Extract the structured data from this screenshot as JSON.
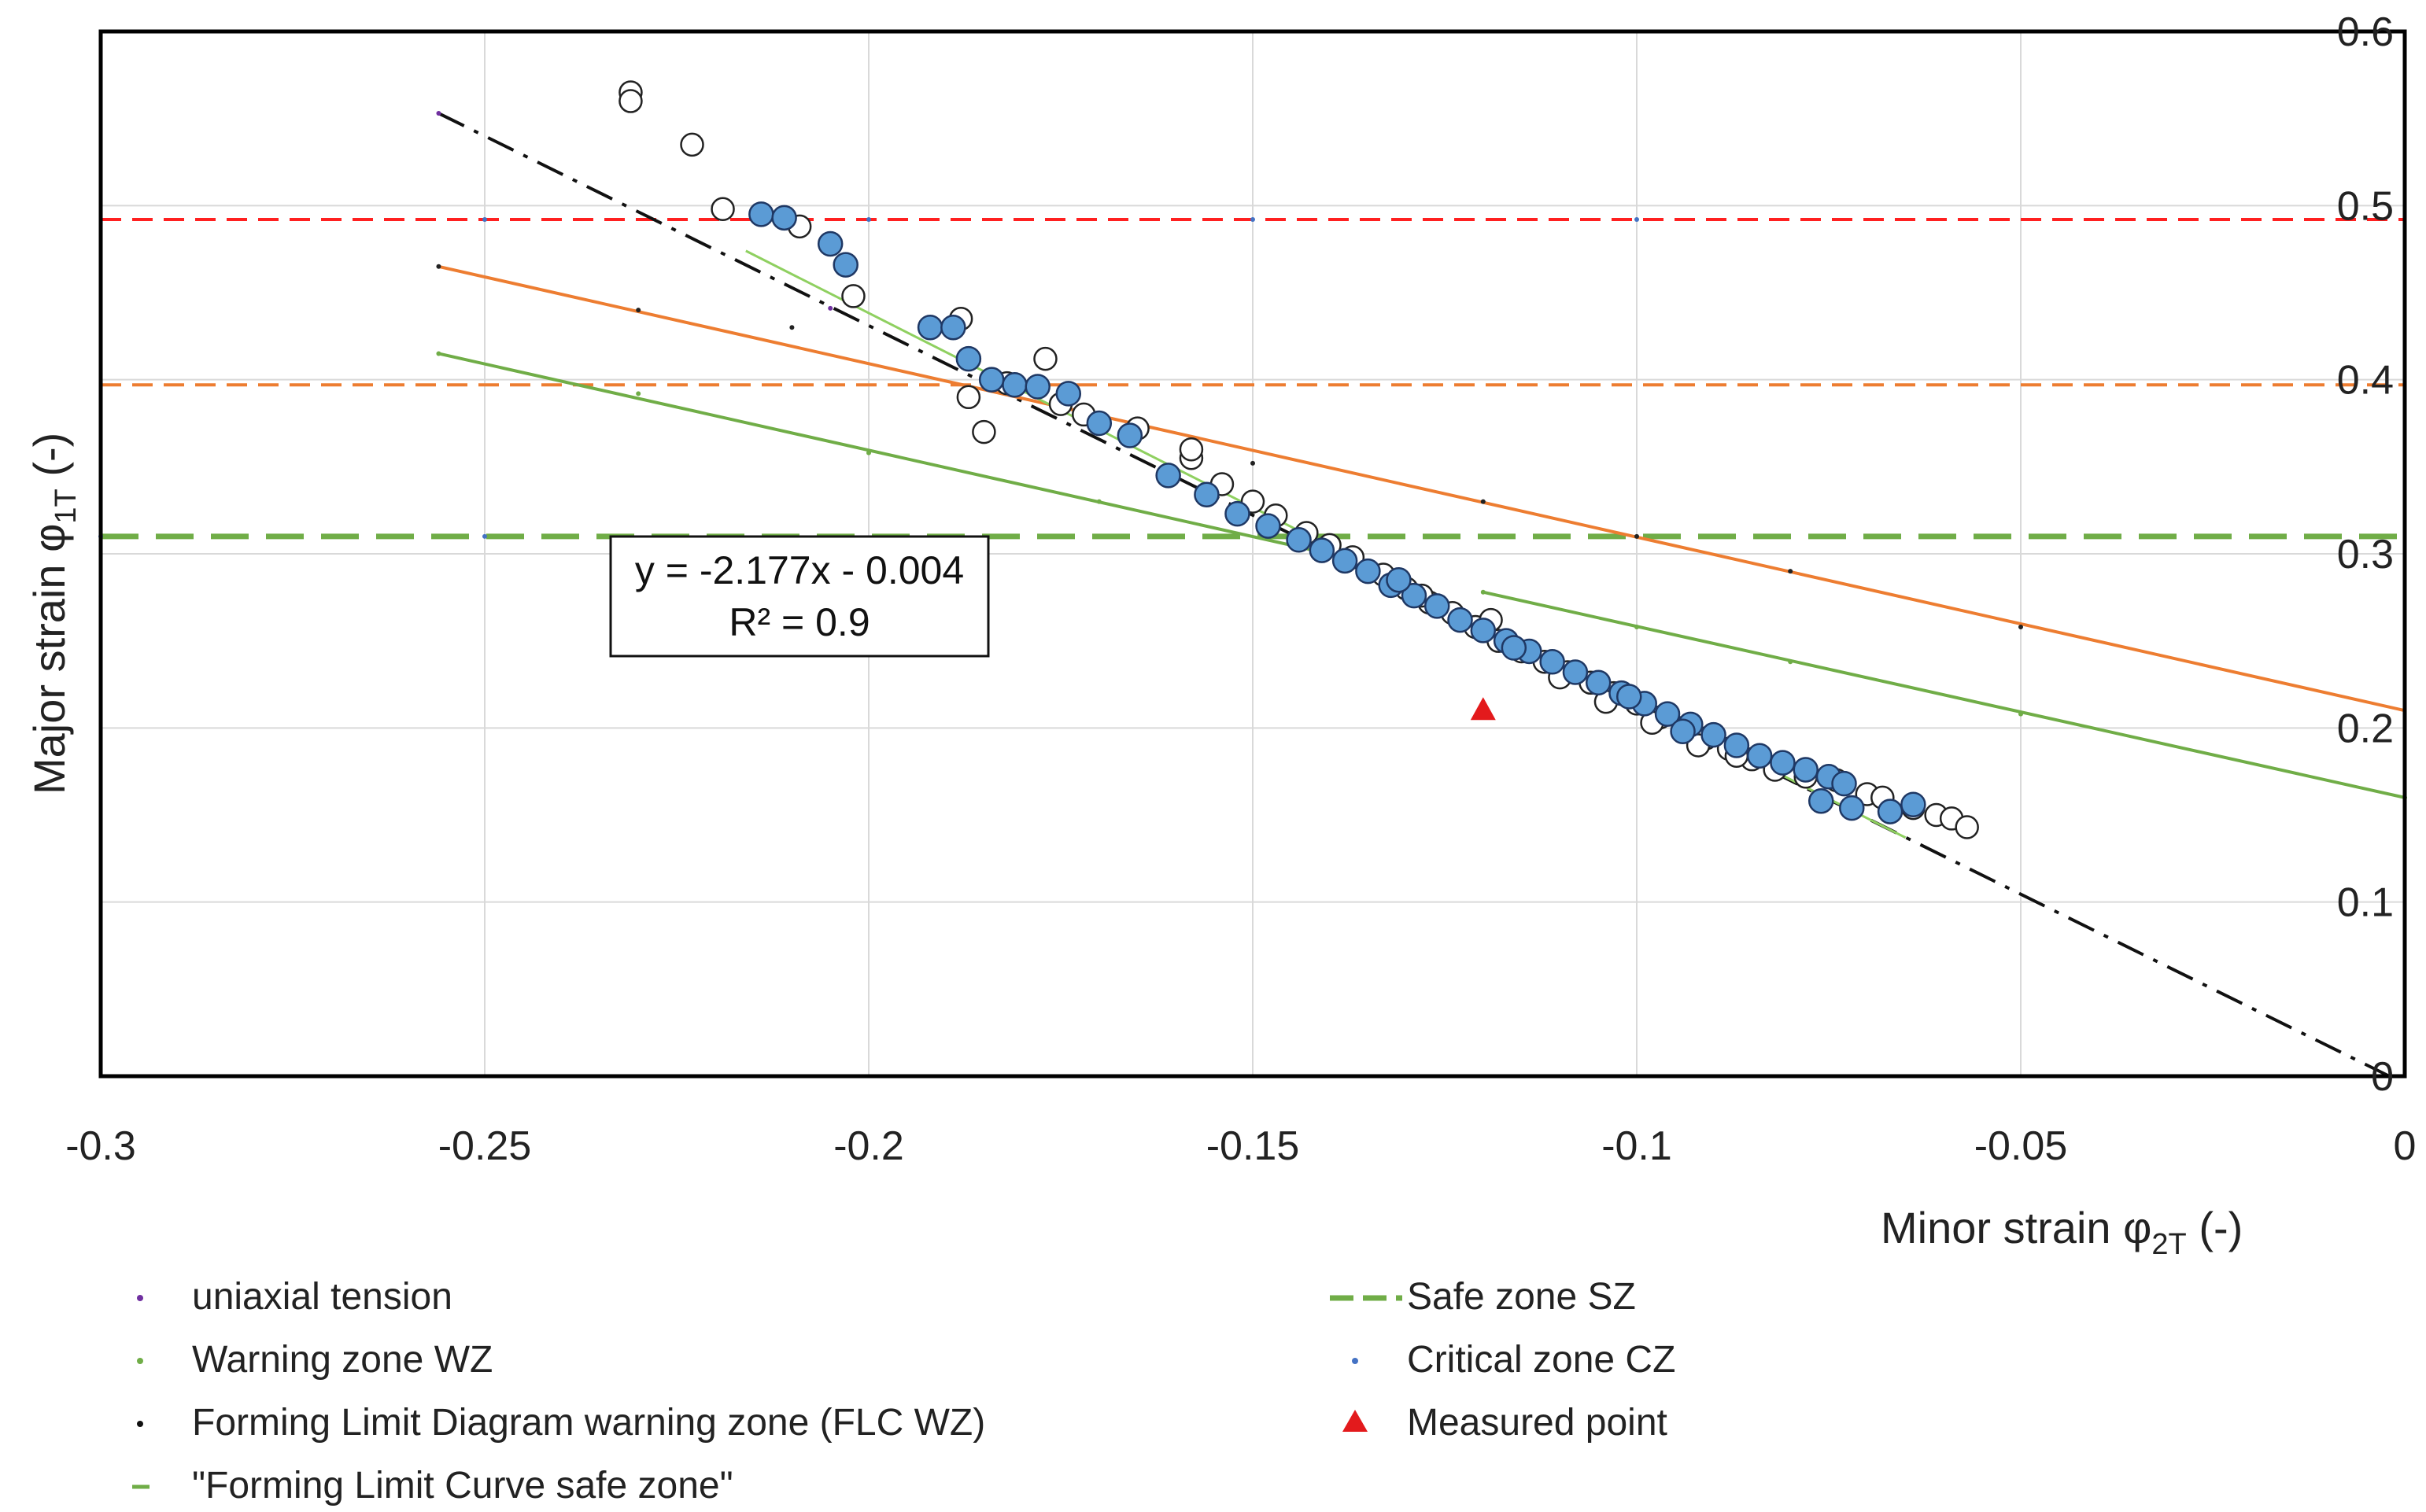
{
  "chart_data": {
    "type": "scatter",
    "xlabel_prefix": "Minor strain φ",
    "xlabel_sub": "2T",
    "xlabel_suffix": " (-)",
    "ylabel_prefix": "Major strain φ",
    "ylabel_sub": "1T",
    "ylabel_suffix": " (-)",
    "xlim": [
      -0.3,
      0
    ],
    "ylim": [
      0,
      0.6
    ],
    "x_ticks": [
      -0.3,
      -0.25,
      -0.2,
      -0.15,
      -0.1,
      -0.05,
      0
    ],
    "x_tick_labels": [
      "-0.3",
      "-0.25",
      "-0.2",
      "-0.15",
      "-0.1",
      "-0.05",
      "0"
    ],
    "y_ticks": [
      0,
      0.1,
      0.2,
      0.3,
      0.4,
      0.5,
      0.6
    ],
    "y_tick_labels": [
      "0",
      "0.1",
      "0.2",
      "0.3",
      "0.4",
      "0.5",
      "0.6"
    ],
    "grid": true,
    "trend_annotation": {
      "equation": "y = -2.177x - 0.004",
      "r2": "R² = 0.9"
    },
    "hlines": [
      {
        "name": "critical-line",
        "y": 0.492,
        "color": "#ff2020",
        "dash": "dashed"
      },
      {
        "name": "warning-line",
        "y": 0.397,
        "color": "#ed7d31",
        "dash": "dashed"
      },
      {
        "name": "safe-line",
        "y": 0.31,
        "color": "#70ad47",
        "dash": "long-dash"
      }
    ],
    "lines": [
      {
        "name": "uniaxial-tension-line",
        "color": "#111111",
        "dash": "dash-dot",
        "points": [
          [
            -0.256,
            0.553
          ],
          [
            -0.002,
            0.0
          ]
        ]
      },
      {
        "name": "flc-warning-line",
        "color": "#ed7d31",
        "dash": "solid",
        "points": [
          [
            -0.256,
            0.465
          ],
          [
            0.0,
            0.21
          ]
        ]
      },
      {
        "name": "flc-safe-line-upper",
        "color": "#70ad47",
        "dash": "solid",
        "points": [
          [
            -0.256,
            0.415
          ],
          [
            -0.14,
            0.3
          ]
        ]
      },
      {
        "name": "flc-safe-line-lower",
        "color": "#70ad47",
        "dash": "solid",
        "points": [
          [
            -0.12,
            0.278
          ],
          [
            0.0,
            0.16
          ]
        ]
      },
      {
        "name": "trendline",
        "color": "#8fd060",
        "dash": "solid",
        "points": [
          [
            -0.216,
            0.474
          ],
          [
            -0.065,
            0.137
          ]
        ]
      }
    ],
    "open_points": [
      [
        -0.231,
        0.565
      ],
      [
        -0.231,
        0.56
      ],
      [
        -0.223,
        0.535
      ],
      [
        -0.219,
        0.498
      ],
      [
        -0.209,
        0.488
      ],
      [
        -0.202,
        0.448
      ],
      [
        -0.188,
        0.435
      ],
      [
        -0.187,
        0.39
      ],
      [
        -0.185,
        0.37
      ],
      [
        -0.182,
        0.398
      ],
      [
        -0.177,
        0.412
      ],
      [
        -0.175,
        0.386
      ],
      [
        -0.172,
        0.38
      ],
      [
        -0.165,
        0.372
      ],
      [
        -0.158,
        0.355
      ],
      [
        -0.158,
        0.36
      ],
      [
        -0.154,
        0.34
      ],
      [
        -0.15,
        0.33
      ],
      [
        -0.147,
        0.322
      ],
      [
        -0.143,
        0.312
      ],
      [
        -0.14,
        0.305
      ],
      [
        -0.137,
        0.298
      ],
      [
        -0.133,
        0.288
      ],
      [
        -0.13,
        0.28
      ],
      [
        -0.127,
        0.272
      ],
      [
        -0.124,
        0.266
      ],
      [
        -0.121,
        0.258
      ],
      [
        -0.118,
        0.25
      ],
      [
        -0.115,
        0.244
      ],
      [
        -0.112,
        0.238
      ],
      [
        -0.109,
        0.232
      ],
      [
        -0.106,
        0.226
      ],
      [
        -0.103,
        0.22
      ],
      [
        -0.1,
        0.214
      ],
      [
        -0.097,
        0.206
      ],
      [
        -0.094,
        0.2
      ],
      [
        -0.091,
        0.194
      ],
      [
        -0.088,
        0.188
      ],
      [
        -0.085,
        0.182
      ],
      [
        -0.082,
        0.176
      ],
      [
        -0.078,
        0.172
      ],
      [
        -0.074,
        0.17
      ],
      [
        -0.07,
        0.162
      ],
      [
        -0.068,
        0.16
      ],
      [
        -0.064,
        0.154
      ],
      [
        -0.061,
        0.15
      ],
      [
        -0.059,
        0.148
      ],
      [
        -0.057,
        0.143
      ],
      [
        -0.098,
        0.203
      ],
      [
        -0.092,
        0.19
      ],
      [
        -0.119,
        0.262
      ],
      [
        -0.128,
        0.276
      ],
      [
        -0.11,
        0.229
      ],
      [
        -0.087,
        0.184
      ],
      [
        -0.104,
        0.215
      ]
    ],
    "filled_points": [
      [
        -0.214,
        0.495
      ],
      [
        -0.211,
        0.493
      ],
      [
        -0.205,
        0.478
      ],
      [
        -0.203,
        0.466
      ],
      [
        -0.192,
        0.43
      ],
      [
        -0.189,
        0.43
      ],
      [
        -0.187,
        0.412
      ],
      [
        -0.184,
        0.4
      ],
      [
        -0.181,
        0.397
      ],
      [
        -0.178,
        0.396
      ],
      [
        -0.174,
        0.392
      ],
      [
        -0.17,
        0.375
      ],
      [
        -0.166,
        0.368
      ],
      [
        -0.161,
        0.345
      ],
      [
        -0.156,
        0.334
      ],
      [
        -0.152,
        0.323
      ],
      [
        -0.148,
        0.316
      ],
      [
        -0.144,
        0.308
      ],
      [
        -0.141,
        0.302
      ],
      [
        -0.138,
        0.296
      ],
      [
        -0.135,
        0.29
      ],
      [
        -0.132,
        0.282
      ],
      [
        -0.129,
        0.276
      ],
      [
        -0.126,
        0.27
      ],
      [
        -0.123,
        0.262
      ],
      [
        -0.12,
        0.256
      ],
      [
        -0.117,
        0.25
      ],
      [
        -0.114,
        0.244
      ],
      [
        -0.111,
        0.238
      ],
      [
        -0.108,
        0.232
      ],
      [
        -0.105,
        0.226
      ],
      [
        -0.102,
        0.22
      ],
      [
        -0.099,
        0.214
      ],
      [
        -0.096,
        0.208
      ],
      [
        -0.093,
        0.202
      ],
      [
        -0.09,
        0.196
      ],
      [
        -0.087,
        0.19
      ],
      [
        -0.084,
        0.184
      ],
      [
        -0.081,
        0.18
      ],
      [
        -0.078,
        0.176
      ],
      [
        -0.075,
        0.172
      ],
      [
        -0.073,
        0.168
      ],
      [
        -0.076,
        0.158
      ],
      [
        -0.072,
        0.154
      ],
      [
        -0.067,
        0.152
      ],
      [
        -0.064,
        0.156
      ],
      [
        -0.116,
        0.246
      ],
      [
        -0.101,
        0.218
      ],
      [
        -0.094,
        0.198
      ],
      [
        -0.131,
        0.285
      ]
    ],
    "line_markers": [
      {
        "color": "#7030a0",
        "points": [
          [
            -0.256,
            0.553
          ],
          [
            -0.205,
            0.441
          ]
        ]
      },
      {
        "color": "#70ad47",
        "points": [
          [
            -0.256,
            0.415
          ],
          [
            -0.23,
            0.392
          ],
          [
            -0.2,
            0.358
          ],
          [
            -0.17,
            0.33
          ],
          [
            -0.12,
            0.278
          ],
          [
            -0.1,
            0.258
          ],
          [
            -0.08,
            0.238
          ],
          [
            -0.05,
            0.208
          ],
          [
            0.0,
            0.16
          ]
        ]
      },
      {
        "color": "#222222",
        "points": [
          [
            -0.256,
            0.465
          ],
          [
            -0.23,
            0.44
          ],
          [
            -0.21,
            0.43
          ],
          [
            -0.15,
            0.352
          ],
          [
            -0.12,
            0.33
          ],
          [
            -0.1,
            0.31
          ],
          [
            -0.08,
            0.29
          ],
          [
            -0.05,
            0.258
          ],
          [
            -0.14,
            0.298
          ],
          [
            -0.11,
            0.232
          ]
        ]
      },
      {
        "color": "#4472c4",
        "points": [
          [
            -0.3,
            0.31
          ],
          [
            -0.25,
            0.31
          ],
          [
            -0.25,
            0.492
          ],
          [
            -0.2,
            0.492
          ],
          [
            -0.15,
            0.492
          ],
          [
            -0.1,
            0.492
          ]
        ]
      }
    ],
    "measured_point": {
      "x": -0.12,
      "y": 0.21,
      "color": "#e31a1c"
    },
    "legend": [
      {
        "label": "uniaxial tension",
        "symbol": "dot",
        "color": "#7030a0"
      },
      {
        "label": "Warning zone WZ",
        "symbol": "dot",
        "color": "#70ad47"
      },
      {
        "label": "Forming Limit Diagram warning zone (FLC WZ)",
        "symbol": "dot",
        "color": "#111111"
      },
      {
        "label": "\"Forming Limit Curve safe zone\"",
        "symbol": "dash",
        "color": "#70ad47"
      },
      {
        "label": "Safe zone SZ",
        "symbol": "longdash",
        "color": "#70ad47"
      },
      {
        "label": "Critical zone CZ",
        "symbol": "dot",
        "color": "#4472c4"
      },
      {
        "label": "Measured point",
        "symbol": "triangle",
        "color": "#e31a1c"
      }
    ]
  }
}
